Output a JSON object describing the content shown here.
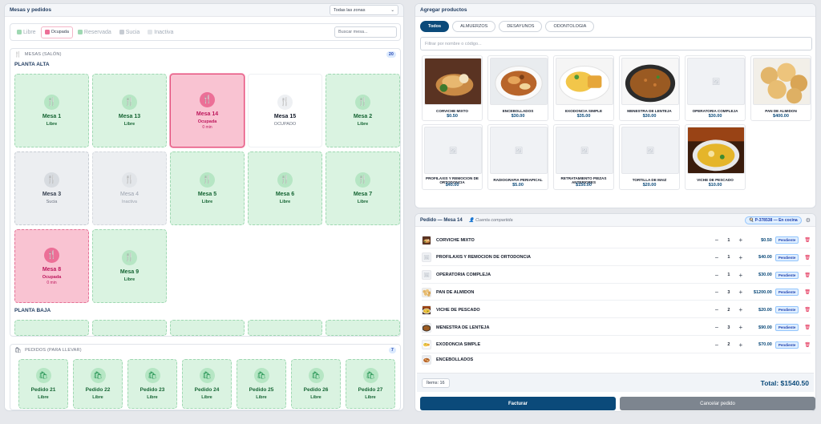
{
  "left": {
    "title": "Mesas y pedidos",
    "zone_select": "Todas las zonas",
    "filters": [
      {
        "label": "Libre",
        "color": "#9fd8b2"
      },
      {
        "label": "Ocupada",
        "color": "#ec6f97"
      },
      {
        "label": "Reservada",
        "color": "#9fd8b2"
      },
      {
        "label": "Sucia",
        "color": "#c7ccd3"
      },
      {
        "label": "Inactiva",
        "color": "#e2e5e9"
      }
    ],
    "search_placeholder": "Buscar mesa...",
    "salon": {
      "header": "MESAS (SALÓN)",
      "count": "20",
      "zone1": "PLANTA ALTA",
      "zone2": "PLANTA BAJA",
      "tables": [
        {
          "name": "Mesa 1",
          "status": "Libre",
          "state": "free"
        },
        {
          "name": "Mesa 13",
          "status": "Libre",
          "state": "free"
        },
        {
          "name": "Mesa 14",
          "status": "Ocupada",
          "time": "0 min",
          "state": "occ-sel"
        },
        {
          "name": "Mesa 15",
          "status": "OCUPADO",
          "state": "white"
        },
        {
          "name": "Mesa 2",
          "status": "Libre",
          "state": "free"
        },
        {
          "name": "Mesa 3",
          "status": "Sucia",
          "state": "dirty"
        },
        {
          "name": "Mesa 4",
          "status": "Inactiva",
          "state": "inact"
        },
        {
          "name": "Mesa 5",
          "status": "Libre",
          "state": "free"
        },
        {
          "name": "Mesa 6",
          "status": "Libre",
          "state": "free"
        },
        {
          "name": "Mesa 7",
          "status": "Libre",
          "state": "free"
        },
        {
          "name": "Mesa 8",
          "status": "Ocupada",
          "time": "0 min",
          "state": "occ"
        },
        {
          "name": "Mesa 9",
          "status": "Libre",
          "state": "free"
        }
      ]
    },
    "llevar": {
      "header": "PEDIDOS (PARA LLEVAR)",
      "count": "7",
      "orders": [
        {
          "name": "Pedido 21",
          "status": "Libre"
        },
        {
          "name": "Pedido 22",
          "status": "Libre"
        },
        {
          "name": "Pedido 23",
          "status": "Libre"
        },
        {
          "name": "Pedido 24",
          "status": "Libre"
        },
        {
          "name": "Pedido 25",
          "status": "Libre"
        },
        {
          "name": "Pedido 26",
          "status": "Libre"
        },
        {
          "name": "Pedido 27",
          "status": "Libre"
        }
      ]
    }
  },
  "products": {
    "title": "Agregar productos",
    "tabs": [
      {
        "label": "Todos",
        "active": true
      },
      {
        "label": "ALMUERZOS"
      },
      {
        "label": "DESAYUNOS"
      },
      {
        "label": "ODONTOLOGIA"
      }
    ],
    "search_placeholder": "Filtrar por nombre o código...",
    "items": [
      {
        "name": "CORVICHE MIXTO",
        "price": "$0.50",
        "img": "corviche"
      },
      {
        "name": "ENCEBOLLADOS",
        "price": "$30.00",
        "img": "encebollado"
      },
      {
        "name": "EXODONCIA SIMPLE",
        "price": "$35.00",
        "img": "rice"
      },
      {
        "name": "MENESTRA DE LENTEJA",
        "price": "$30.00",
        "img": "lentils"
      },
      {
        "name": "OPERATORIA COMPLEJA",
        "price": "$30.00",
        "img": "none"
      },
      {
        "name": "PAN DE ALMIDON",
        "price": "$400.00",
        "img": "bread"
      },
      {
        "name": "PROFILAXIS Y REMOCION DE ORTODONCIA",
        "price": "$40.00",
        "img": "none"
      },
      {
        "name": "RADIOGRAFIA PERIAPICAL",
        "price": "$5.00",
        "img": "none"
      },
      {
        "name": "RETRATAMIENTO PIEZAS ANTERIORES",
        "price": "$150.00",
        "img": "none"
      },
      {
        "name": "TORTILLA DE MAIZ",
        "price": "$20.00",
        "img": "none"
      },
      {
        "name": "VICHE DE PESCADO",
        "price": "$10.00",
        "img": "viche"
      }
    ]
  },
  "order": {
    "title": "Pedido — Mesa 14",
    "shared": "Cuenta compartida",
    "badge": "P-378538 — En cocina",
    "lines": [
      {
        "name": "CORVICHE MIXTO",
        "qty": "1",
        "price": "$0.50",
        "status": "Pendiente",
        "img": "corviche"
      },
      {
        "name": "PROFILAXIS Y REMOCION DE ORTODONCIA",
        "qty": "1",
        "price": "$40.00",
        "status": "Pendiente",
        "img": "none"
      },
      {
        "name": "OPERATORIA COMPLEJA",
        "qty": "1",
        "price": "$30.00",
        "status": "Pendiente",
        "img": "none"
      },
      {
        "name": "PAN DE ALMIDON",
        "qty": "3",
        "price": "$1200.00",
        "status": "Pendiente",
        "img": "bread"
      },
      {
        "name": "VICHE DE PESCADO",
        "qty": "2",
        "price": "$20.00",
        "status": "Pendiente",
        "img": "viche"
      },
      {
        "name": "MENESTRA DE LENTEJA",
        "qty": "3",
        "price": "$90.00",
        "status": "Pendiente",
        "img": "lentils"
      },
      {
        "name": "EXODONCIA SIMPLE",
        "qty": "2",
        "price": "$70.00",
        "status": "Pendiente",
        "img": "rice"
      },
      {
        "name": "ENCEBOLLADOS",
        "qty": "",
        "price": "",
        "status": "",
        "img": "encebollado"
      }
    ],
    "items_label": "Ítems: 16",
    "total": "Total: $1540.50",
    "bill_label": "Facturar",
    "cancel_label": "Cancelar pedido"
  }
}
